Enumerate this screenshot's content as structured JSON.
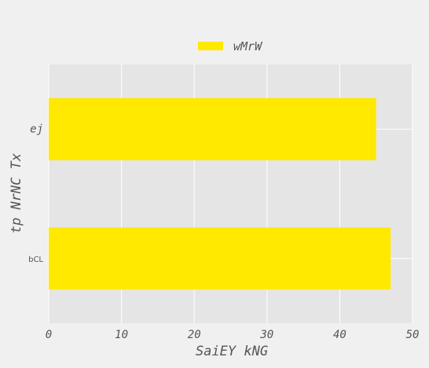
{
  "chart_data": {
    "type": "bar",
    "orientation": "horizontal",
    "categories": [
      "ej",
      "bCL"
    ],
    "series": [
      {
        "name": "wMrW",
        "values": [
          45,
          47
        ],
        "color": "#ffe900"
      }
    ],
    "xlabel": "SaiEY kNG",
    "ylabel": "tp NrNC Tx",
    "xlim": [
      0,
      50
    ],
    "xticks": [
      0,
      10,
      20,
      30,
      40,
      50
    ],
    "grid": true,
    "legend_position": "top-center",
    "plot_background": "#e5e5e5",
    "page_background": "#f0f0f0"
  }
}
